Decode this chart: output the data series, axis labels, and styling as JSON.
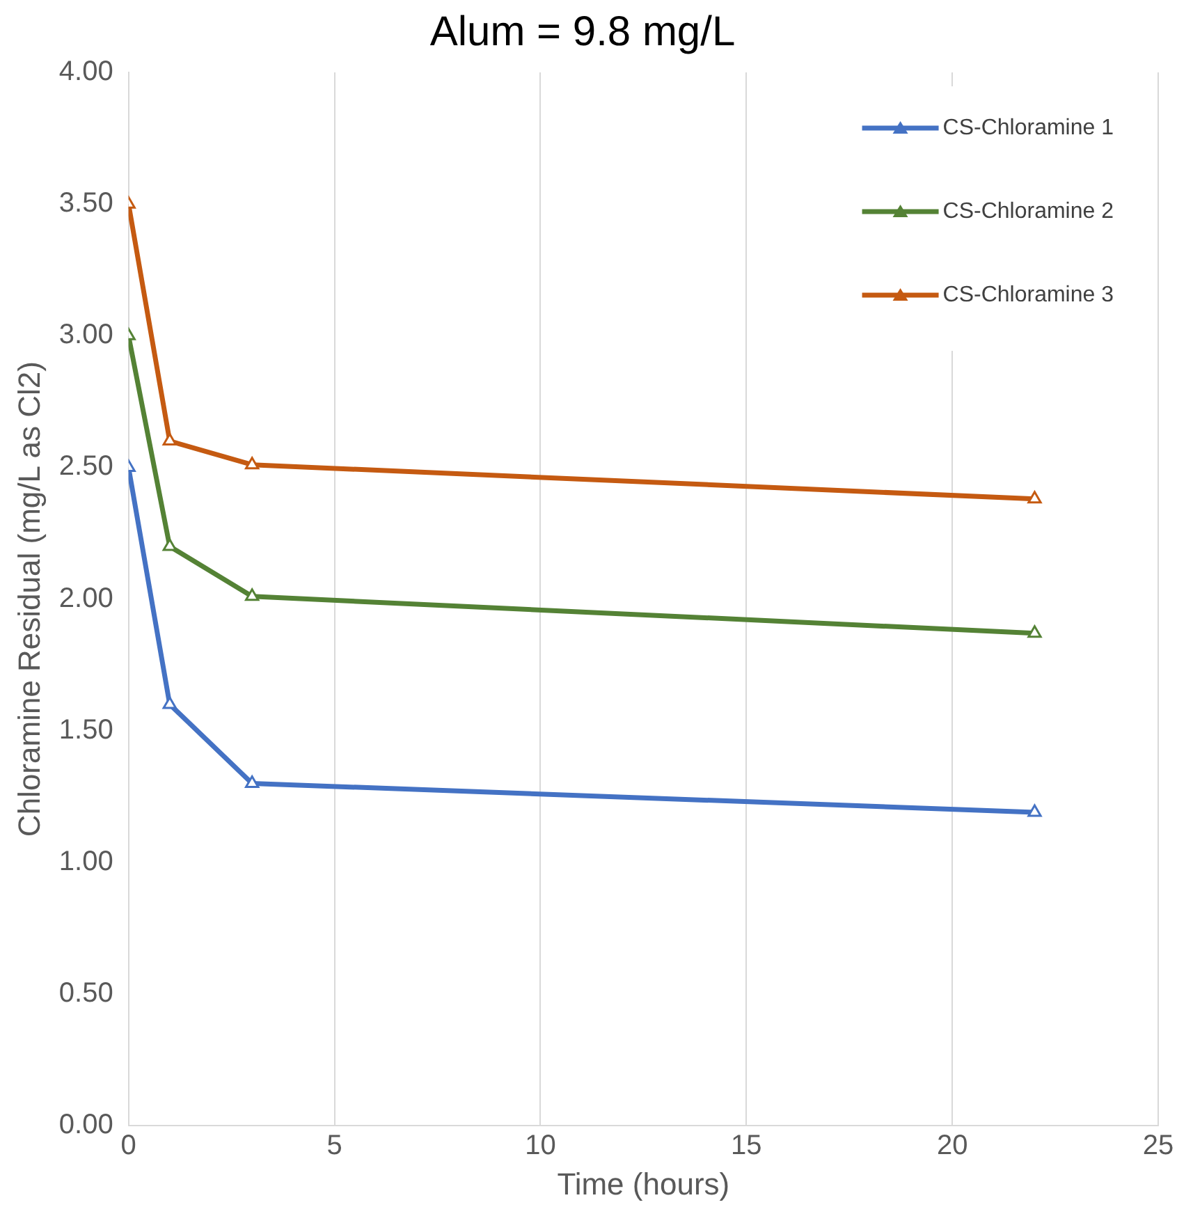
{
  "chart_data": {
    "type": "line",
    "title": "Alum = 9.8 mg/L",
    "xlabel": "Time (hours)",
    "ylabel": "Chloramine Residual (mg/L as Cl2)",
    "x": [
      0,
      1,
      3,
      22
    ],
    "series": [
      {
        "name": "CS-Chloramine 1",
        "color": "#4472c4",
        "values": [
          2.5,
          1.6,
          1.3,
          1.19
        ]
      },
      {
        "name": "CS-Chloramine 2",
        "color": "#548235",
        "values": [
          3.0,
          2.2,
          2.01,
          1.87
        ]
      },
      {
        "name": "CS-Chloramine 3",
        "color": "#c55a11",
        "values": [
          3.5,
          2.6,
          2.51,
          2.38
        ]
      }
    ],
    "xlim": [
      0,
      25
    ],
    "xticks": [
      0,
      5,
      10,
      15,
      20,
      25
    ],
    "ylim": [
      0,
      4
    ],
    "yticks": [
      {
        "value": 0,
        "label": "0.00"
      },
      {
        "value": 0.5,
        "label": "0.50"
      },
      {
        "value": 1,
        "label": "1.00"
      },
      {
        "value": 1.5,
        "label": "1.50"
      },
      {
        "value": 2,
        "label": "2.00"
      },
      {
        "value": 2.5,
        "label": "2.50"
      },
      {
        "value": 3,
        "label": "3.00"
      },
      {
        "value": 3.5,
        "label": "3.50"
      },
      {
        "value": 4,
        "label": "4.00"
      }
    ],
    "grid": "x",
    "legend": "top right",
    "marker": "triangle",
    "line_style": "solid"
  }
}
